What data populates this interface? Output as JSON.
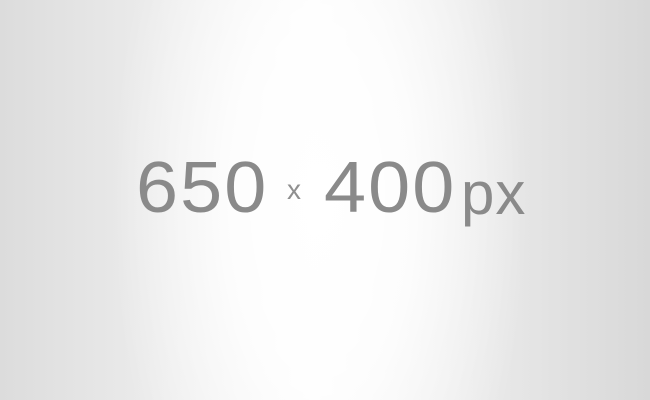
{
  "placeholder": {
    "width_text": "650",
    "times_text": "x",
    "height_text": "400",
    "unit_text": "px"
  },
  "colors": {
    "text": "#8a8a8a",
    "background_center": "#f6f6f6",
    "background_edge": "#d8d8d8"
  }
}
